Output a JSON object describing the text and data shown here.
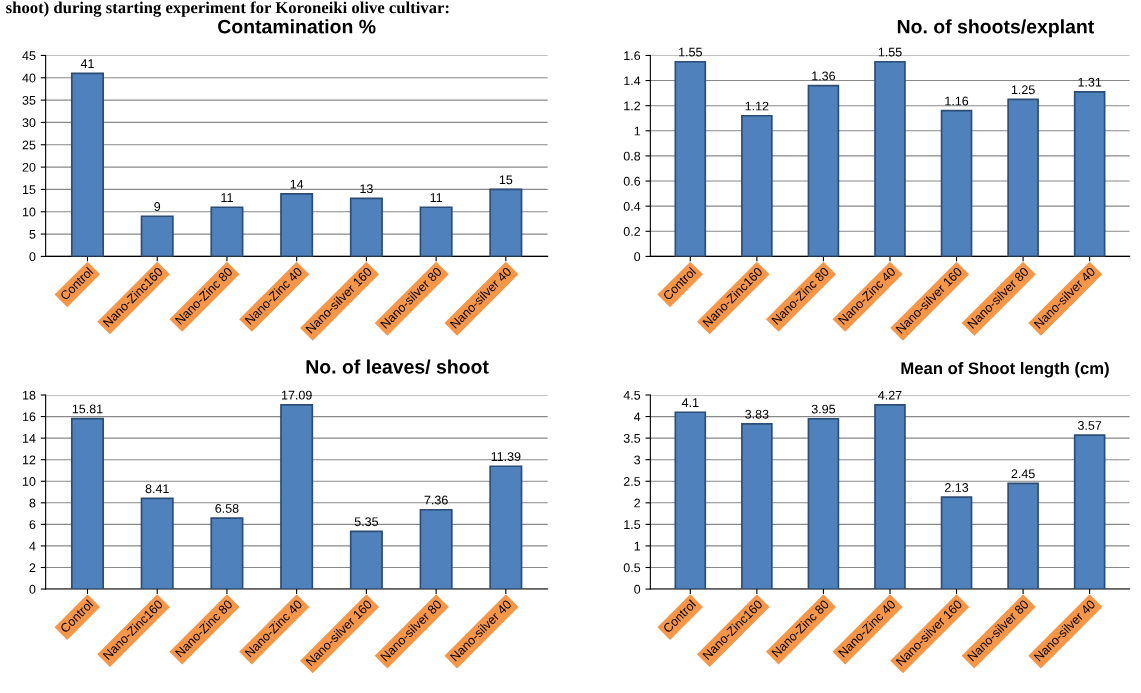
{
  "chart_data": [
    {
      "type": "bar",
      "title": "Contamination %",
      "annotations": [
        "shoot) during starting experiment for Koroneiki olive cultivar:"
      ],
      "categories": [
        "Control",
        "Nano-Zinc160",
        "Nano-Zinc 80",
        "Nano-Zinc 40",
        "Nano-silver 160",
        "Nano-silver 80",
        "Nano-silver 40"
      ],
      "values": [
        41,
        9,
        11,
        14,
        13,
        11,
        15
      ],
      "color": "#4f81bd",
      "ylim": [
        0,
        45
      ],
      "yticks": [
        0,
        5,
        10,
        15,
        20,
        25,
        30,
        35,
        40,
        45
      ],
      "grid": "y",
      "data_labels": true
    },
    {
      "type": "bar",
      "title": "No. of shoots/explant",
      "categories": [
        "Control",
        "Nano-Zinc160",
        "Nano-Zinc 80",
        "Nano-Zinc 40",
        "Nano-silver 160",
        "Nano-silver 80",
        "Nano-silver 40"
      ],
      "values": [
        1.55,
        1.12,
        1.36,
        1.55,
        1.16,
        1.25,
        1.31
      ],
      "color": "#4f81bd",
      "ylim": [
        0,
        1.6
      ],
      "yticks": [
        0,
        0.2,
        0.4,
        0.6,
        0.8,
        1,
        1.2,
        1.4,
        1.6
      ],
      "grid": "y",
      "data_labels": true
    },
    {
      "type": "bar",
      "title": "No. of leaves/ shoot",
      "categories": [
        "Control",
        "Nano-Zinc160",
        "Nano-Zinc 80",
        "Nano-Zinc 40",
        "Nano-silver 160",
        "Nano-silver 80",
        "Nano-silver 40"
      ],
      "values": [
        15.81,
        8.41,
        6.58,
        17.09,
        5.35,
        7.36,
        11.39
      ],
      "color": "#4f81bd",
      "ylim": [
        0,
        18
      ],
      "yticks": [
        0,
        2,
        4,
        6,
        8,
        10,
        12,
        14,
        16,
        18
      ],
      "grid": "y",
      "data_labels": true
    },
    {
      "type": "bar",
      "title": "Mean of Shoot length (cm)",
      "categories": [
        "Control",
        "Nano-Zinc160",
        "Nano-Zinc 80",
        "Nano-Zinc 40",
        "Nano-silver 160",
        "Nano-silver 80",
        "Nano-silver 40"
      ],
      "values": [
        4.1,
        3.83,
        3.95,
        4.27,
        2.13,
        2.45,
        3.57
      ],
      "color": "#4f81bd",
      "ylim": [
        0,
        4.5
      ],
      "yticks": [
        0,
        0.5,
        1,
        1.5,
        2,
        2.5,
        3,
        3.5,
        4,
        4.5
      ],
      "grid": "y",
      "data_labels": true
    }
  ]
}
